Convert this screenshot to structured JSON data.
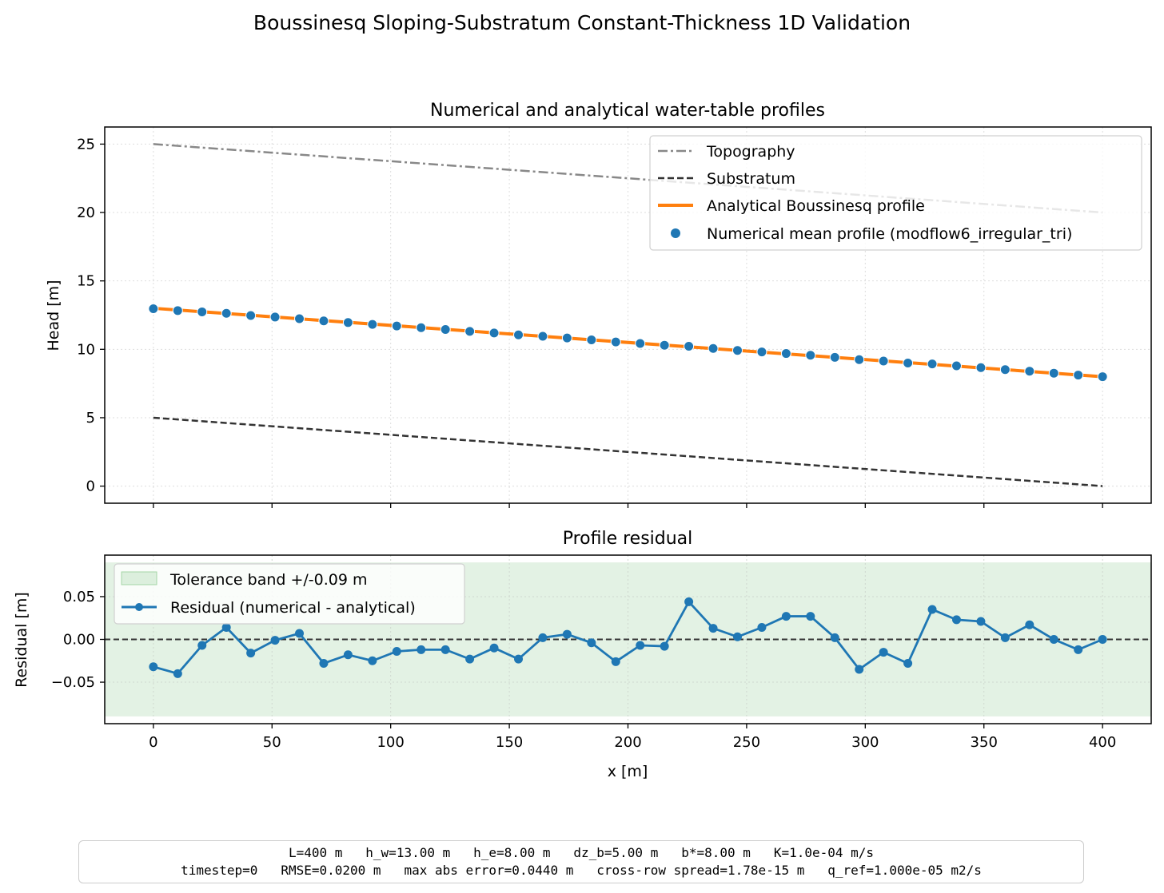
{
  "figure": {
    "title": "Boussinesq Sloping-Substratum Constant-Thickness 1D Validation"
  },
  "chart_data": [
    {
      "type": "line",
      "title": "Numerical and analytical water-table profiles",
      "xlabel": "",
      "ylabel": "Head [m]",
      "xlim": [
        -20.5,
        420.5
      ],
      "ylim": [
        -1.25,
        26.25
      ],
      "xticks": [
        0,
        50,
        100,
        150,
        200,
        250,
        300,
        350,
        400
      ],
      "xtick_labels_visible": false,
      "yticks": [
        0,
        5,
        10,
        15,
        20,
        25
      ],
      "ytick_labels": [
        "0",
        "5",
        "10",
        "15",
        "20",
        "25"
      ],
      "grid": true,
      "legend_position": "top-right",
      "series": [
        {
          "name": "Topography",
          "style": "dashdot",
          "color": "#888888",
          "x": [
            0,
            400
          ],
          "y": [
            25,
            20
          ]
        },
        {
          "name": "Substratum",
          "style": "dashed",
          "color": "#333333",
          "x": [
            0,
            400
          ],
          "y": [
            5,
            0
          ]
        },
        {
          "name": "Analytical Boussinesq profile",
          "style": "solid",
          "color": "#ff7f0e",
          "x": [
            0,
            400
          ],
          "y": [
            13,
            8
          ]
        },
        {
          "name": "Numerical mean profile (modflow6_irregular_tri)",
          "style": "markers",
          "color": "#1f77b4",
          "x": [
            0,
            10.26,
            20.51,
            30.77,
            41.03,
            51.28,
            61.54,
            71.79,
            82.05,
            92.31,
            102.56,
            112.82,
            123.08,
            133.33,
            143.59,
            153.85,
            164.1,
            174.36,
            184.62,
            194.87,
            205.13,
            215.38,
            225.64,
            235.9,
            246.15,
            256.41,
            266.67,
            276.92,
            287.18,
            297.44,
            307.69,
            317.95,
            328.21,
            338.46,
            348.72,
            358.97,
            369.23,
            379.49,
            389.74,
            400
          ],
          "y": [
            12.968,
            12.832,
            12.737,
            12.63,
            12.472,
            12.358,
            12.238,
            12.075,
            11.957,
            11.821,
            11.704,
            11.578,
            11.45,
            11.311,
            11.196,
            11.054,
            10.953,
            10.827,
            10.689,
            10.538,
            10.429,
            10.299,
            10.224,
            10.065,
            9.92,
            9.81,
            9.694,
            9.566,
            9.413,
            9.247,
            9.145,
            8.999,
            8.933,
            8.793,
            8.662,
            8.515,
            8.402,
            8.256,
            8.117,
            8.0
          ]
        }
      ]
    },
    {
      "type": "line",
      "title": "Profile residual",
      "xlabel": "x [m]",
      "ylabel": "Residual [m]",
      "xlim": [
        -20.5,
        420.5
      ],
      "ylim": [
        -0.0985,
        0.0985
      ],
      "xticks": [
        0,
        50,
        100,
        150,
        200,
        250,
        300,
        350,
        400
      ],
      "xtick_labels": [
        "0",
        "50",
        "100",
        "150",
        "200",
        "250",
        "300",
        "350",
        "400"
      ],
      "yticks": [
        -0.05,
        0.0,
        0.05
      ],
      "ytick_labels": [
        "−0.05",
        "0.00",
        "0.05"
      ],
      "grid": true,
      "legend_position": "top-left",
      "tolerance_band": {
        "name": "Tolerance band +/-0.09 m",
        "lower": -0.09,
        "upper": 0.09,
        "color": "#c8e6c9"
      },
      "reference_line": 0,
      "series": [
        {
          "name": "Residual (numerical - analytical)",
          "color": "#1f77b4",
          "x": [
            0,
            10.26,
            20.51,
            30.77,
            41.03,
            51.28,
            61.54,
            71.79,
            82.05,
            92.31,
            102.56,
            112.82,
            123.08,
            133.33,
            143.59,
            153.85,
            164.1,
            174.36,
            184.62,
            194.87,
            205.13,
            215.38,
            225.64,
            235.9,
            246.15,
            256.41,
            266.67,
            276.92,
            287.18,
            297.44,
            307.69,
            317.95,
            328.21,
            338.46,
            348.72,
            358.97,
            369.23,
            379.49,
            389.74,
            400
          ],
          "y": [
            -0.032,
            -0.04,
            -0.007,
            0.014,
            -0.016,
            -0.001,
            0.007,
            -0.028,
            -0.018,
            -0.025,
            -0.014,
            -0.012,
            -0.012,
            -0.023,
            -0.01,
            -0.023,
            0.002,
            0.006,
            -0.004,
            -0.026,
            -0.007,
            -0.008,
            0.044,
            0.013,
            0.003,
            0.014,
            0.027,
            0.027,
            0.002,
            -0.035,
            -0.015,
            -0.028,
            0.035,
            0.023,
            0.021,
            0.002,
            0.017,
            0.0,
            -0.012,
            0.0
          ]
        }
      ]
    }
  ],
  "info": {
    "line1": "L=400 m   h_w=13.00 m   h_e=8.00 m   dz_b=5.00 m   b*=8.00 m   K=1.0e-04 m/s",
    "line2": "timestep=0   RMSE=0.0200 m   max abs error=0.0440 m   cross-row spread=1.78e-15 m   q_ref=1.000e-05 m2/s"
  }
}
